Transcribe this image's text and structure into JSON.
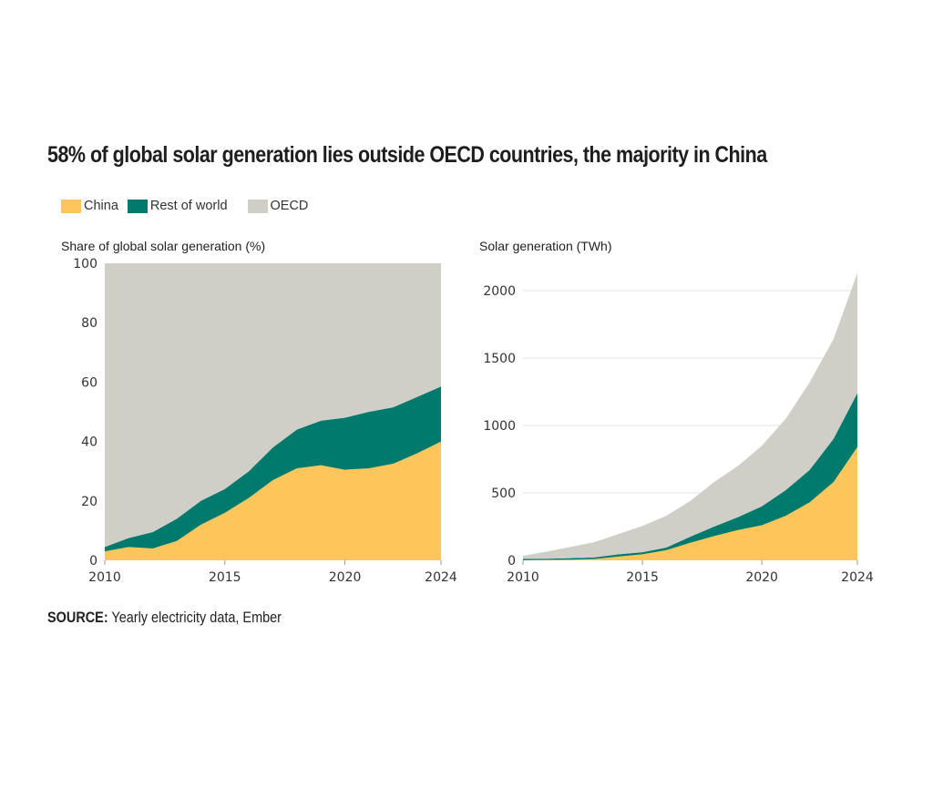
{
  "title": "58% of global solar generation lies outside OECD countries, the majority in China",
  "legend": [
    {
      "label": "China",
      "color": "#fdc55a"
    },
    {
      "label": "Rest of world",
      "color": "#007a6c"
    },
    {
      "label": "OECD",
      "color": "#cfcfc7"
    }
  ],
  "source": {
    "label": "SOURCE:",
    "text": " Yearly electricity data, Ember"
  },
  "chart_data": [
    {
      "type": "area",
      "stacked": true,
      "title": "Share of global solar generation (%)",
      "xlabel": "",
      "ylabel": "Share of global solar generation (%)",
      "x": [
        2010,
        2011,
        2012,
        2013,
        2014,
        2015,
        2016,
        2017,
        2018,
        2019,
        2020,
        2021,
        2022,
        2023,
        2024
      ],
      "xticks": [
        2010,
        2015,
        2020,
        2024
      ],
      "yticks": [
        0,
        20,
        40,
        60,
        80,
        100
      ],
      "ylim": [
        0,
        100
      ],
      "grid": false,
      "series": [
        {
          "name": "China",
          "values": [
            3,
            4.5,
            4,
            6.5,
            12,
            16,
            21,
            27,
            31,
            32,
            30.5,
            31,
            32.5,
            36,
            40
          ]
        },
        {
          "name": "Rest of world",
          "values": [
            1.5,
            3,
            5.5,
            7.5,
            8,
            8,
            9,
            11,
            13,
            15,
            17.5,
            19,
            19,
            19,
            18.5
          ]
        },
        {
          "name": "OECD",
          "values": [
            95.5,
            92.5,
            90.5,
            86,
            80,
            76,
            70,
            62,
            56,
            53,
            52,
            50,
            48.5,
            45,
            41.5
          ]
        }
      ]
    },
    {
      "type": "area",
      "stacked": true,
      "title": "Solar generation (TWh)",
      "xlabel": "",
      "ylabel": "Solar generation (TWh)",
      "x": [
        2010,
        2011,
        2012,
        2013,
        2014,
        2015,
        2016,
        2017,
        2018,
        2019,
        2020,
        2021,
        2022,
        2023,
        2024
      ],
      "xticks": [
        2010,
        2015,
        2020,
        2024
      ],
      "yticks": [
        0,
        500,
        1000,
        1500,
        2000
      ],
      "ylim": [
        0,
        2150
      ],
      "grid": true,
      "series": [
        {
          "name": "China",
          "values": [
            1,
            3,
            5,
            10,
            28,
            45,
            75,
            130,
            180,
            225,
            260,
            330,
            430,
            580,
            840
          ]
        },
        {
          "name": "Rest of world",
          "values": [
            9,
            9,
            11,
            12,
            17,
            15,
            20,
            45,
            70,
            95,
            140,
            190,
            240,
            320,
            400
          ]
        },
        {
          "name": "OECD",
          "values": [
            23,
            53,
            84,
            113,
            150,
            195,
            235,
            265,
            330,
            380,
            450,
            530,
            650,
            740,
            890
          ]
        }
      ]
    }
  ]
}
